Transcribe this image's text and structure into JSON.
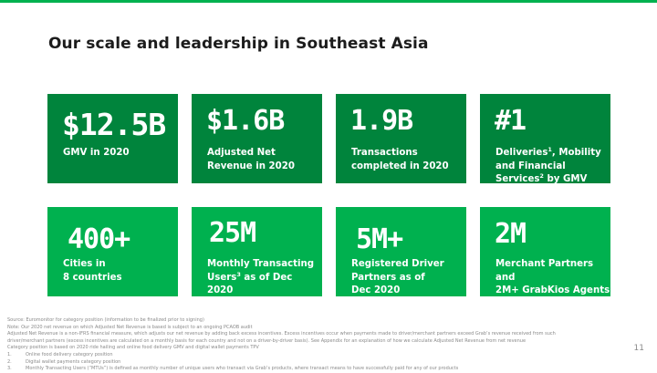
{
  "slide": {
    "title": "Our scale and leadership in Southeast Asia",
    "page_number": "11",
    "colors": {
      "dark_green": "#00843c",
      "bright_green": "#00b14f",
      "top_bar": "#00b14f"
    }
  },
  "metrics": [
    {
      "value": "$12.5B",
      "label_parts": [
        "GMV in 2020"
      ]
    },
    {
      "value": "$1.6B",
      "label_parts": [
        "Adjusted Net",
        "Revenue in 2020"
      ]
    },
    {
      "value": "1.9B",
      "label_parts": [
        "Transactions",
        "completed in 2020"
      ]
    },
    {
      "value": "#1",
      "label_html_parts": {
        "a": "Deliveries",
        "sup1": "1",
        "b": ", Mobility and Financial Services",
        "sup2": "2",
        "c": " by GMV"
      }
    },
    {
      "value": "400+",
      "label_parts": [
        "Cities in",
        "8 countries"
      ]
    },
    {
      "value": "25M",
      "label_parts": {
        "a": "Monthly Transacting Users",
        "sup": "3",
        "b": " as of Dec 2020"
      }
    },
    {
      "value": "5M+",
      "label_parts": [
        "Registered Driver",
        "Partners as of",
        "Dec 2020"
      ]
    },
    {
      "value": "2M",
      "label_parts": [
        "Merchant Partners and",
        "2M+ GrabKios Agents",
        "as of Dec 2020"
      ]
    }
  ],
  "footnotes": {
    "lines": [
      "Source: Euromonitor for category position (information to be finalized prior to signing)",
      "Note: Our 2020 net revenue on which Adjusted Net Revenue is based is subject to an ongoing PCAOB audit",
      "Adjusted Net Revenue is a non-IFRS financial measure, which adjusts our net revenue by adding back excess incentives. Excess incentives occur when payments made to driver/merchant partners exceed Grab’s revenue received from such",
      "driver/merchant partners (excess incentives are calculated on a monthly basis for each country and not on a driver-by-driver basis). See Appendix for an explanation of how we calculate Adjusted Net Revenue from net revenue",
      "Category position is based on 2020 ride hailing and online food delivery GMV and digital wallet payments TPV"
    ],
    "numbered": [
      {
        "num": "1.",
        "text": "Online food delivery category position"
      },
      {
        "num": "2.",
        "text": "Digital wallet payments category position"
      },
      {
        "num": "3.",
        "text": "Monthly Transacting Users (“MTUs”) is defined as monthly number of unique users who transact via Grab’s products, where transact means to have successfully paid for any of our products"
      }
    ]
  }
}
